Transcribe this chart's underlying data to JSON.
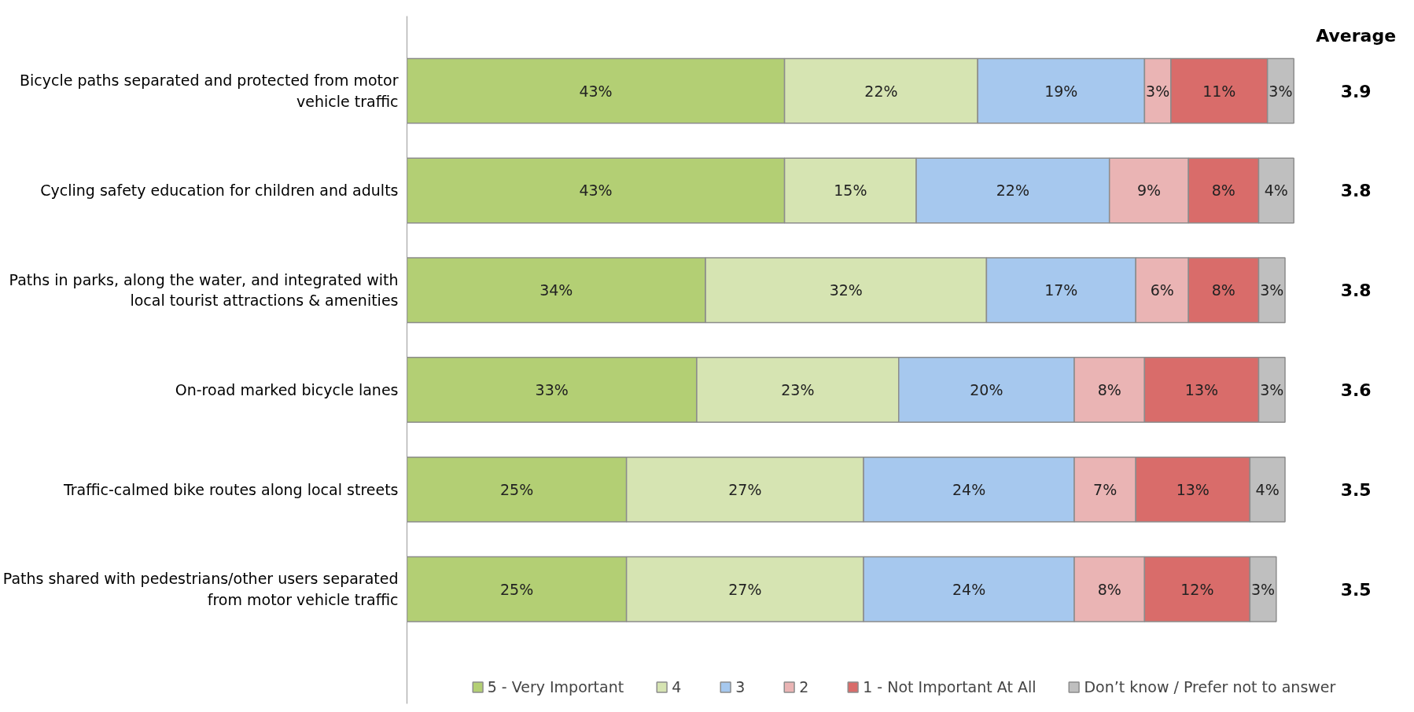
{
  "chart_data": {
    "type": "bar",
    "orientation": "horizontal",
    "stacked": true,
    "tick_labels": "y",
    "legend": "bottom",
    "grid": false,
    "categories": [
      "Bicycle paths separated and protected from motor vehicle traffic",
      "Cycling safety education for children and adults",
      "Paths in parks, along the water, and integrated with local tourist attractions & amenities",
      "On-road marked bicycle lanes",
      "Traffic-calmed bike routes along local streets",
      "Paths shared with pedestrians/other users separated from motor vehicle traffic"
    ],
    "series": [
      {
        "name": "5 - Very Important",
        "color": "#b3cf74",
        "values": [
          43,
          43,
          34,
          33,
          25,
          25
        ],
        "value_labels": [
          "43%",
          "43%",
          "34%",
          "33%",
          "25%",
          "25%"
        ]
      },
      {
        "name": "4",
        "color": "#d6e4b2",
        "values": [
          22,
          15,
          32,
          23,
          27,
          27
        ],
        "value_labels": [
          "22%",
          "15%",
          "32%",
          "23%",
          "27%",
          "27%"
        ]
      },
      {
        "name": "3",
        "color": "#a6c8ee",
        "values": [
          19,
          22,
          17,
          20,
          24,
          24
        ],
        "value_labels": [
          "19%",
          "22%",
          "17%",
          "20%",
          "24%",
          "24%"
        ]
      },
      {
        "name": "2",
        "color": "#eab4b4",
        "values": [
          3,
          9,
          6,
          8,
          7,
          8
        ],
        "value_labels": [
          "3%",
          "9%",
          "6%",
          "8%",
          "7%",
          "8%"
        ]
      },
      {
        "name": "1 - Not Important At All",
        "color": "#d96c6a",
        "values": [
          11,
          8,
          8,
          13,
          13,
          12
        ],
        "value_labels": [
          "11%",
          "8%",
          "8%",
          "13%",
          "13%",
          "12%"
        ]
      },
      {
        "name": "Don’t know / Prefer not to answer",
        "color": "#bfbfbf",
        "values": [
          3,
          4,
          3,
          3,
          4,
          3
        ],
        "value_labels": [
          "3%",
          "4%",
          "3%",
          "3%",
          "4%",
          "3%"
        ]
      }
    ],
    "annotations": [
      "Average",
      "3.9",
      "3.8",
      "3.8",
      "3.6",
      "3.5",
      "3.5"
    ]
  }
}
